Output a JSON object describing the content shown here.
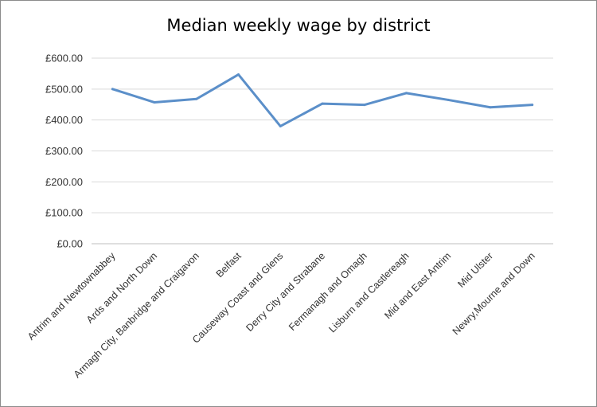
{
  "chart_data": {
    "type": "line",
    "title": "Median weekly wage by district",
    "xlabel": "",
    "ylabel": "",
    "categories": [
      "Antrim and Newtownabbey",
      "Ards and North Down",
      "Armagh City, Banbridge and Craigavon",
      "Belfast",
      "Causeway Coast and Glens",
      "Derry City and Strabane",
      "Fermanagh and Omagh",
      "Lisburn and Castlereagh",
      "Mid and East Antrim",
      "Mid Ulster",
      "Newry,Mourne and Down"
    ],
    "series": [
      {
        "values": [
          500,
          457,
          468,
          547,
          380,
          453,
          449,
          487,
          465,
          441,
          449
        ]
      }
    ],
    "y_tick_labels": [
      "£0.00",
      "£100.00",
      "£200.00",
      "£300.00",
      "£400.00",
      "£500.00",
      "£600.00"
    ],
    "ylim": [
      0,
      600
    ],
    "y_tick_step": 100,
    "grid": true,
    "legend": "none",
    "colors": {
      "line": "#5b8fc9",
      "grid": "#d9d9d9",
      "axis": "#bfbfbf"
    }
  }
}
